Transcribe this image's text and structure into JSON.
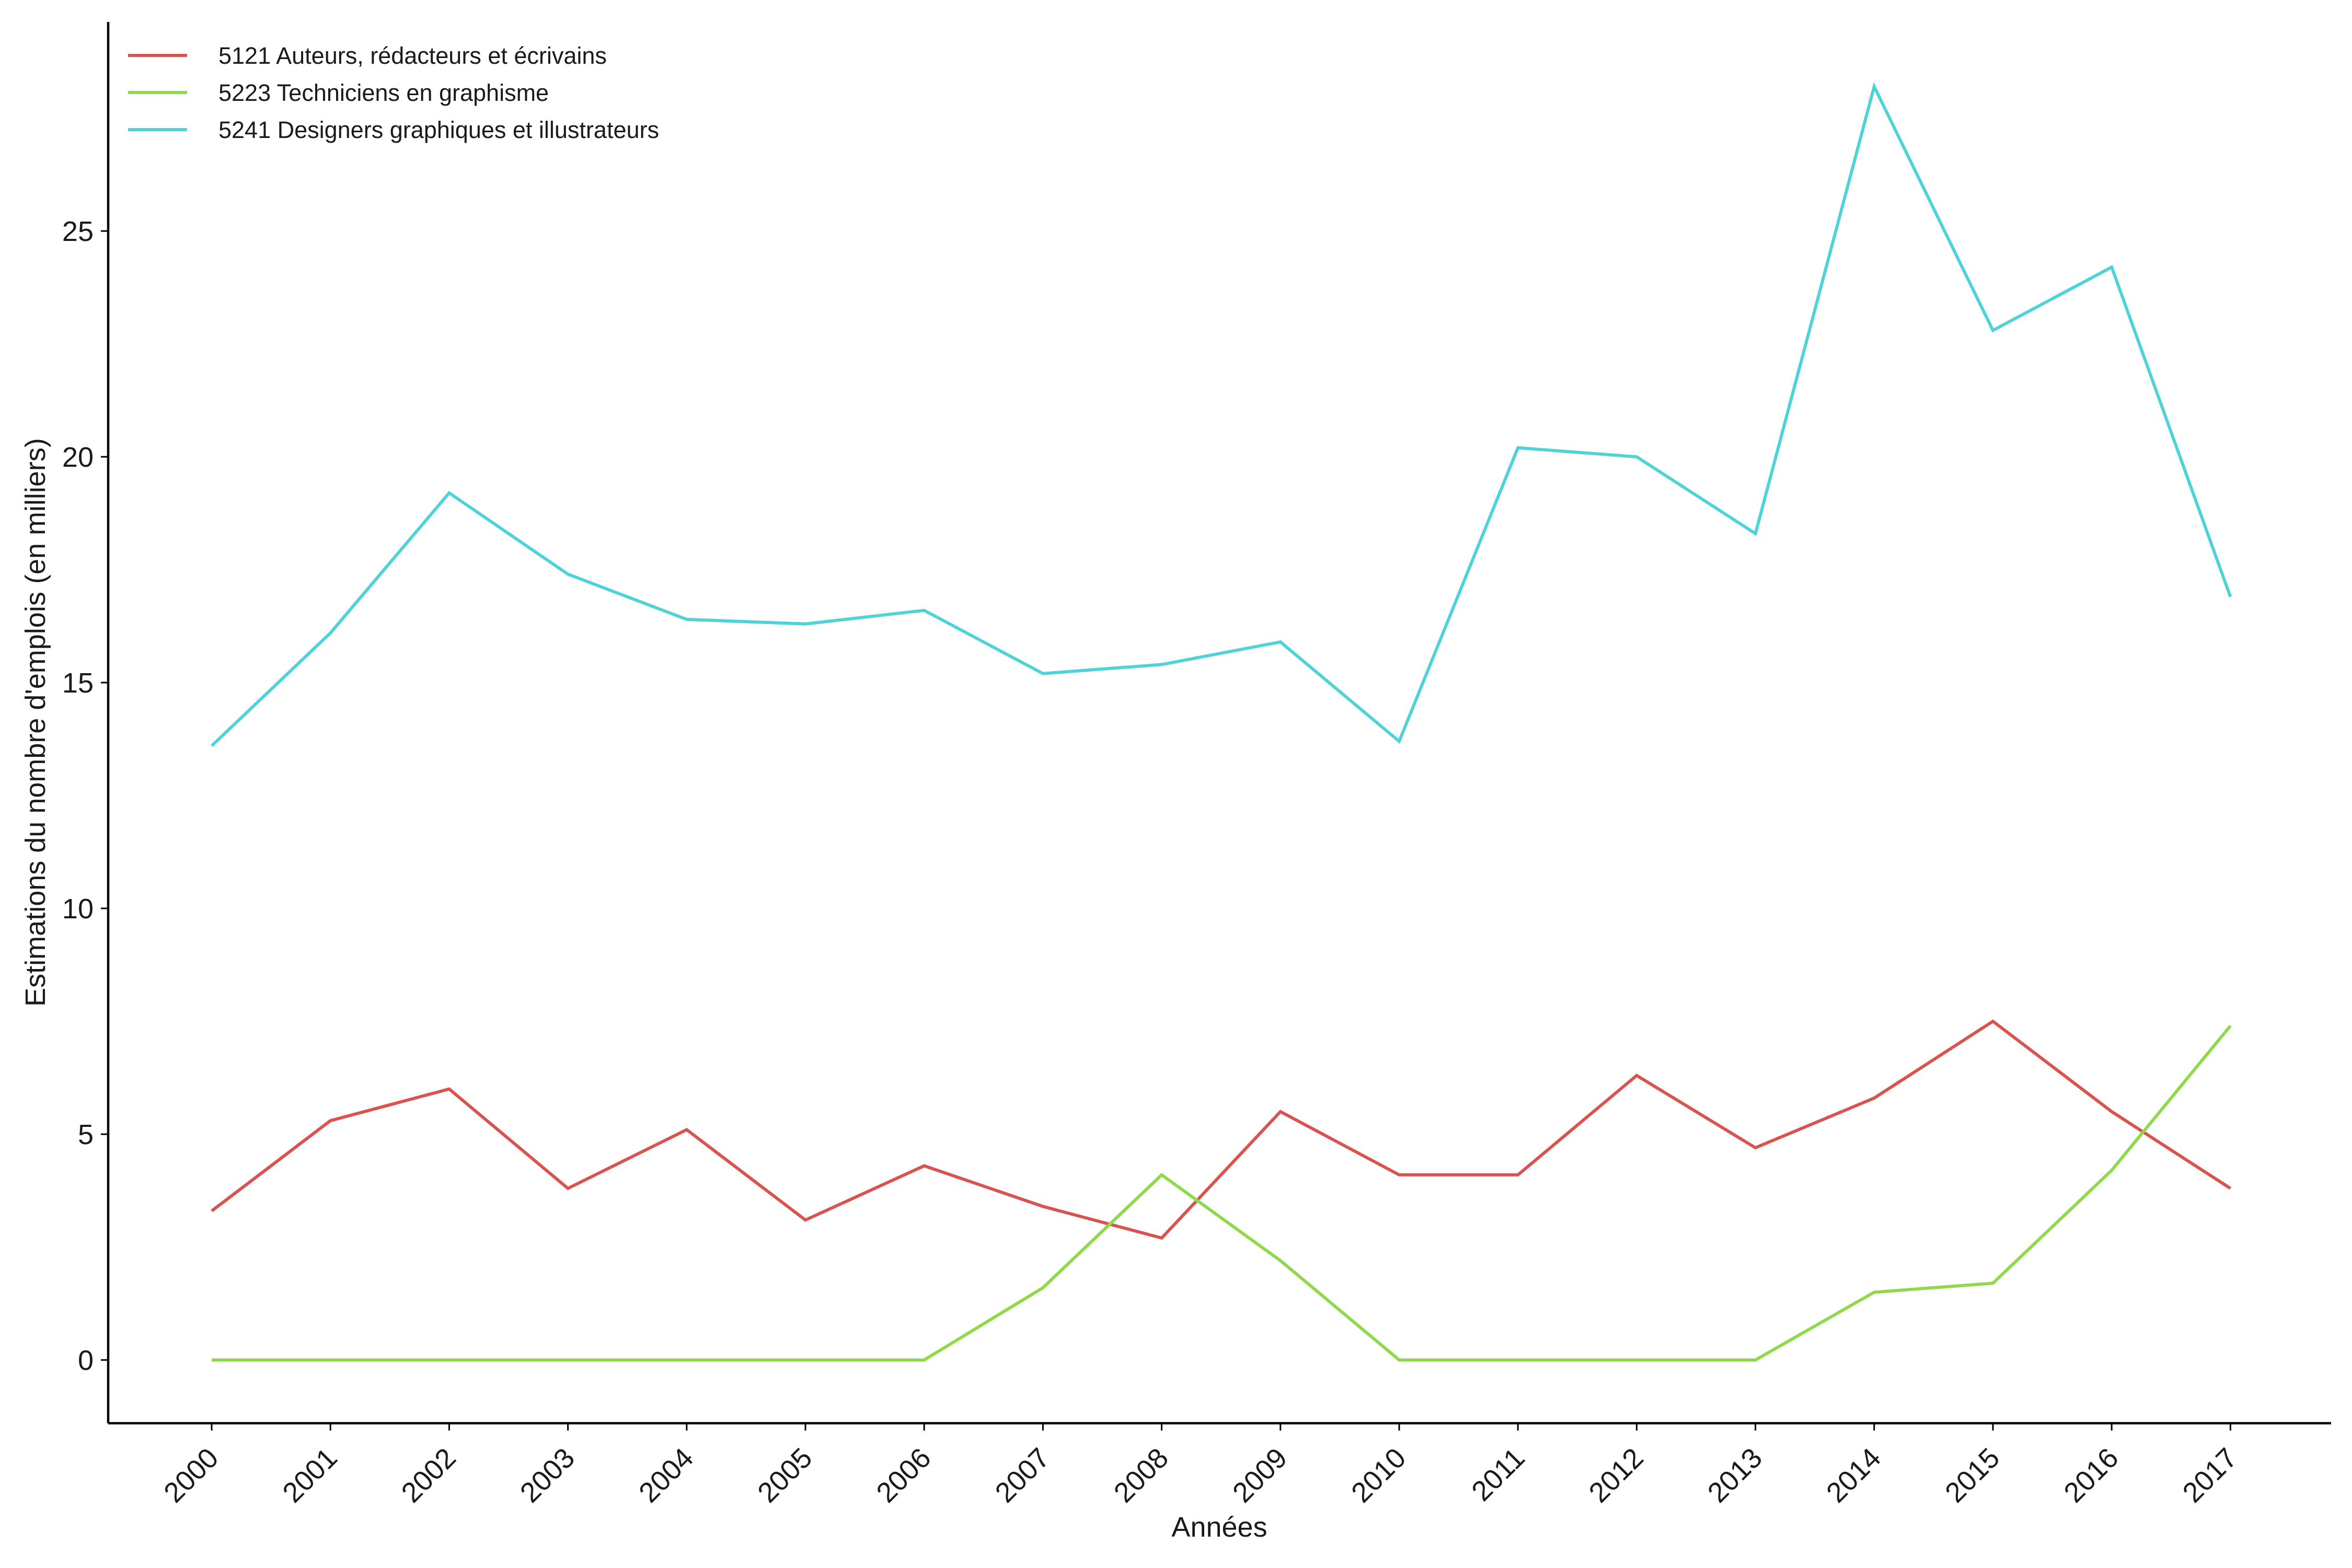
{
  "chart_data": {
    "type": "line",
    "title": "",
    "xlabel": "Années",
    "ylabel": "Estimations du nombre d'emplois (en milliers)",
    "categories": [
      "2000",
      "2001",
      "2002",
      "2003",
      "2004",
      "2005",
      "2006",
      "2007",
      "2008",
      "2009",
      "2010",
      "2011",
      "2012",
      "2013",
      "2014",
      "2015",
      "2016",
      "2017"
    ],
    "yticks": [
      0,
      5,
      10,
      15,
      20,
      25
    ],
    "ylim": [
      -1.4,
      29.6
    ],
    "grid": false,
    "legend_position": "top-left",
    "series": [
      {
        "name": "5121 Auteurs, rédacteurs et écrivains",
        "color": "#d9534f",
        "values": [
          3.3,
          5.3,
          6.0,
          3.8,
          5.1,
          3.1,
          4.3,
          3.4,
          2.7,
          5.5,
          4.1,
          4.1,
          6.3,
          4.7,
          5.8,
          7.5,
          5.5,
          3.8
        ]
      },
      {
        "name": "5223 Techniciens en graphisme",
        "color": "#8fd94a",
        "values": [
          0,
          0,
          0,
          0,
          0,
          0,
          0,
          1.6,
          4.1,
          2.2,
          0,
          0,
          0,
          0,
          1.5,
          1.7,
          4.2,
          7.4
        ]
      },
      {
        "name": "5241 Designers graphiques et illustrateurs",
        "color": "#4fd3d9",
        "values": [
          13.6,
          16.1,
          19.2,
          17.4,
          16.4,
          16.3,
          16.6,
          15.2,
          15.4,
          15.9,
          13.7,
          20.2,
          20.0,
          18.3,
          28.2,
          22.8,
          24.2,
          16.9
        ]
      }
    ]
  }
}
